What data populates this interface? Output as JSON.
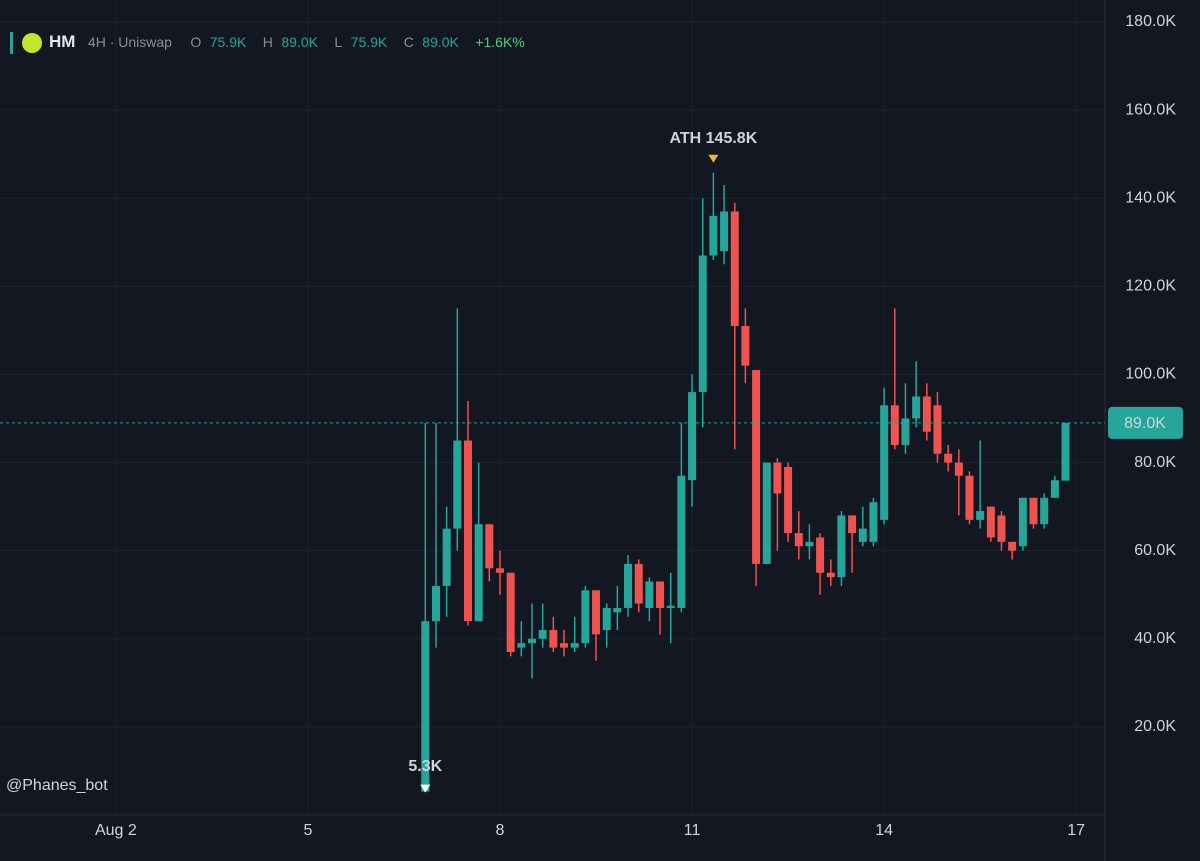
{
  "chart_data": {
    "type": "candlestick",
    "header": {
      "symbol": "HM",
      "interval": "4H · Uniswap",
      "open_label": "O",
      "open": "75.9K",
      "high_label": "H",
      "high": "89.0K",
      "low_label": "L",
      "low": "75.9K",
      "close_label": "C",
      "close": "89.0K",
      "change": "+1.6K%"
    },
    "watermark": "@Phanes_bot",
    "up_color": "#26a69a",
    "down_color": "#ef5350",
    "grid": true,
    "x": [
      6.833,
      7,
      7.167,
      7.333,
      7.5,
      7.667,
      7.833,
      8,
      8.167,
      8.333,
      8.5,
      8.667,
      8.833,
      9,
      9.167,
      9.333,
      9.5,
      9.667,
      9.833,
      10,
      10.167,
      10.333,
      10.5,
      10.667,
      10.833,
      11,
      11.167,
      11.333,
      11.5,
      11.667,
      11.833,
      12,
      12.167,
      12.333,
      12.5,
      12.667,
      12.833,
      13,
      13.167,
      13.333,
      13.5,
      13.667,
      13.833,
      14,
      14.167,
      14.333,
      14.5,
      14.667,
      14.833,
      15,
      15.167,
      15.333,
      15.5,
      15.667,
      15.833,
      16,
      16.167,
      16.333,
      16.5,
      16.667,
      16.833
    ],
    "open": [
      5.3,
      44,
      52,
      65,
      85,
      44,
      66,
      56,
      55,
      38,
      39,
      40,
      42,
      39,
      38,
      39,
      51,
      42,
      46,
      47,
      57,
      47,
      53,
      47,
      47,
      76,
      96,
      127,
      128,
      137,
      111,
      101,
      57,
      80,
      79,
      64,
      61,
      63,
      55,
      54,
      68,
      62,
      62,
      67,
      93,
      84,
      90,
      95,
      93,
      82,
      80,
      77,
      67,
      70,
      68,
      62,
      61,
      72,
      66,
      72,
      75.9
    ],
    "high": [
      89,
      89,
      70,
      115,
      94,
      80,
      66,
      60,
      55,
      44,
      48,
      48,
      45,
      42,
      45,
      52,
      51,
      48,
      52,
      59,
      58,
      54,
      53,
      55,
      89,
      100,
      140,
      145.8,
      143,
      139,
      115,
      101,
      80,
      81,
      80,
      69,
      66,
      64,
      58,
      69,
      68,
      70,
      72,
      97,
      115,
      98,
      103,
      98,
      96,
      84,
      83,
      78,
      85,
      70,
      69,
      62,
      72,
      72,
      73,
      77,
      89
    ],
    "low": [
      5.3,
      38,
      45,
      60,
      43,
      44,
      53,
      50,
      36,
      36,
      31,
      38,
      37,
      36,
      37,
      38,
      35,
      38,
      42,
      45,
      46,
      44,
      41,
      39,
      46,
      70,
      88,
      126,
      125,
      83,
      98,
      52,
      57,
      60,
      62,
      58,
      58,
      50,
      52,
      52,
      55,
      61,
      61,
      66,
      83,
      82,
      88,
      85,
      80,
      78,
      68,
      66,
      65,
      62,
      60,
      58,
      60,
      65,
      65,
      72,
      75.9
    ],
    "close": [
      44,
      52,
      65,
      85,
      44,
      66,
      56,
      55,
      37,
      39,
      40,
      42,
      38,
      38,
      39,
      51,
      41,
      47,
      47,
      57,
      48,
      53,
      47,
      47.5,
      77,
      96,
      127,
      136,
      137,
      111,
      102,
      57,
      80,
      73,
      64,
      61,
      62,
      55,
      54,
      68,
      64,
      65,
      71,
      93,
      84,
      90,
      95,
      87,
      82,
      80,
      77,
      67,
      69,
      63,
      62,
      60,
      72,
      66,
      72,
      76,
      89
    ],
    "xlim": [
      0.19,
      17.45
    ],
    "xticks": [
      {
        "value": 2,
        "label": "Aug 2"
      },
      5,
      8,
      11,
      14,
      17
    ],
    "ylim": [
      0,
      185
    ],
    "yticks": [
      {
        "value": 20,
        "label": "20.0K"
      },
      {
        "value": 40,
        "label": "40.0K"
      },
      {
        "value": 60,
        "label": "60.0K"
      },
      {
        "value": 80,
        "label": "80.0K"
      },
      {
        "value": 100,
        "label": "100.0K"
      },
      {
        "value": 120,
        "label": "120.0K"
      },
      {
        "value": 140,
        "label": "140.0K"
      },
      {
        "value": 160,
        "label": "160.0K"
      },
      {
        "value": 180,
        "label": "180.0K"
      }
    ],
    "last_price": {
      "value": 89,
      "label": "89.0K"
    },
    "annotations": [
      {
        "text": "ATH 145.8K",
        "value": 145.8,
        "index": 27,
        "position": "above"
      },
      {
        "text": "5.3K",
        "value": 5.3,
        "index": 0,
        "position": "below"
      }
    ]
  }
}
